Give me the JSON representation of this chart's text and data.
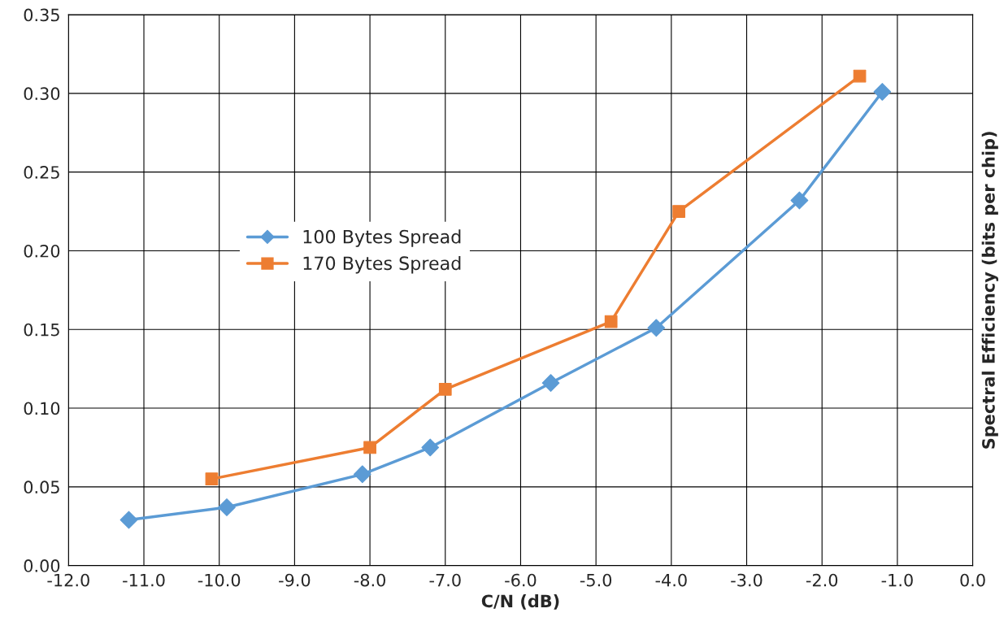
{
  "chart_data": {
    "type": "line",
    "xlabel": "C/N (dB)",
    "ylabel": "Spectral Efficiency (bits per chip)",
    "xlim": [
      -12,
      0
    ],
    "xticks": [
      {
        "value": -12,
        "label": "-12.0"
      },
      {
        "value": -11,
        "label": "-11.0"
      },
      {
        "value": -10,
        "label": "-10.0"
      },
      {
        "value": -9,
        "label": "-9.0"
      },
      {
        "value": -8,
        "label": "-8.0"
      },
      {
        "value": -7,
        "label": "-7.0"
      },
      {
        "value": -6,
        "label": "-6.0"
      },
      {
        "value": -5,
        "label": "-5.0"
      },
      {
        "value": -4,
        "label": "-4.0"
      },
      {
        "value": -3,
        "label": "-3.0"
      },
      {
        "value": -2,
        "label": "-2.0"
      },
      {
        "value": -1,
        "label": "-1.0"
      },
      {
        "value": 0,
        "label": "0.0"
      }
    ],
    "ylim": [
      0,
      0.35
    ],
    "yticks": [
      {
        "value": 0,
        "label": "0.00"
      },
      {
        "value": 0.05,
        "label": "0.05"
      },
      {
        "value": 0.1,
        "label": "0.10"
      },
      {
        "value": 0.15,
        "label": "0.15"
      },
      {
        "value": 0.2,
        "label": "0.20"
      },
      {
        "value": 0.25,
        "label": "0.25"
      },
      {
        "value": 0.3,
        "label": "0.30"
      },
      {
        "value": 0.35,
        "label": "0.35"
      }
    ],
    "grid": true,
    "legend": "center",
    "series": [
      {
        "name": "100 Bytes Spread",
        "color": "#5b9bd5",
        "marker": "diamond",
        "x": [
          -11.2,
          -9.9,
          -8.1,
          -7.2,
          -5.6,
          -4.2,
          -2.3,
          -1.2
        ],
        "values": [
          0.029,
          0.037,
          0.058,
          0.075,
          0.116,
          0.151,
          0.232,
          0.301
        ]
      },
      {
        "name": "170 Bytes Spread",
        "color": "#ed7d31",
        "marker": "square",
        "x": [
          -10.1,
          -8.0,
          -7.0,
          -4.8,
          -3.9,
          -1.5
        ],
        "values": [
          0.055,
          0.075,
          0.112,
          0.155,
          0.225,
          0.311
        ]
      }
    ]
  }
}
